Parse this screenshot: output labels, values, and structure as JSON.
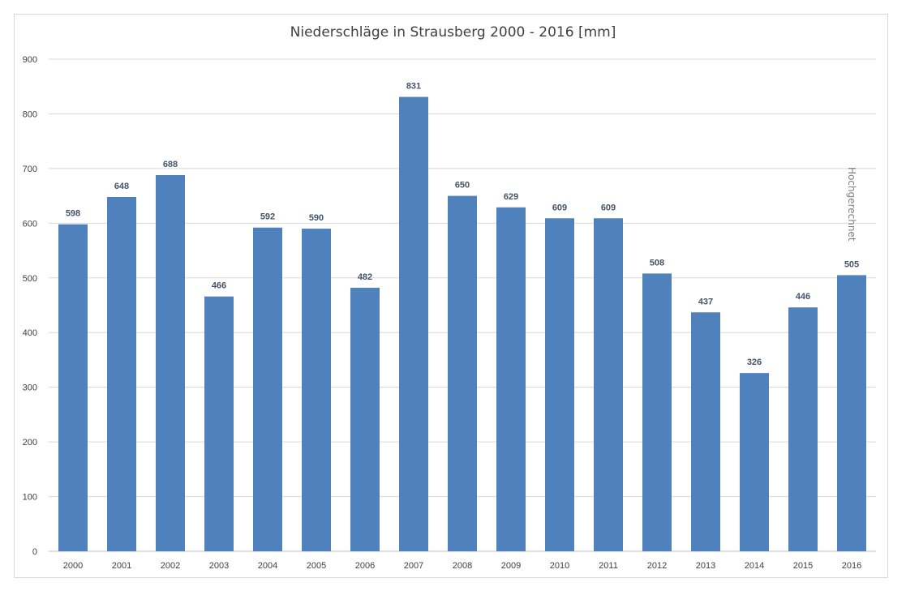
{
  "chart_data": {
    "type": "bar",
    "title": "Niederschläge in Strausberg 2000 - 2016 [mm]",
    "xlabel": "",
    "ylabel": "",
    "categories": [
      "2000",
      "2001",
      "2002",
      "2003",
      "2004",
      "2005",
      "2006",
      "2007",
      "2008",
      "2009",
      "2010",
      "2011",
      "2012",
      "2013",
      "2014",
      "2015",
      "2016"
    ],
    "values": [
      598,
      648,
      688,
      466,
      592,
      590,
      482,
      831,
      650,
      629,
      609,
      609,
      508,
      437,
      326,
      446,
      505
    ],
    "ylim": [
      0,
      900
    ],
    "yticks": [
      0,
      100,
      200,
      300,
      400,
      500,
      600,
      700,
      800,
      900
    ],
    "grid": true,
    "bar_color": "#4f81bd",
    "annotations": [
      {
        "category": "2016",
        "text": "Hochgerechnet"
      }
    ]
  }
}
